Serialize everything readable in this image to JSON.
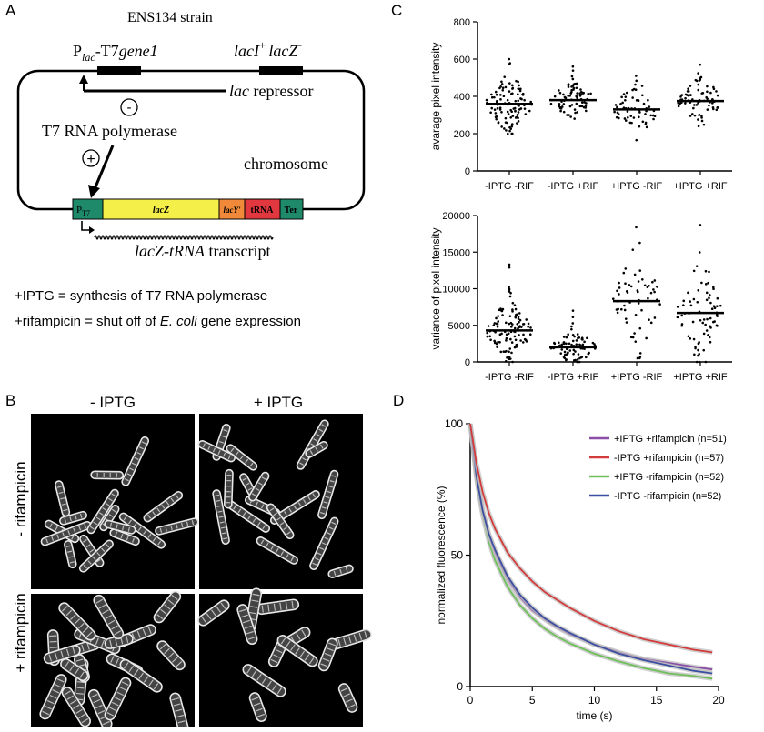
{
  "panels": {
    "a": {
      "letter": "A",
      "title": "ENS134 strain",
      "promoter_p": "P",
      "promoter_sub": "lac",
      "promoter_rest": "-T7",
      "promoter_gene": "gene1",
      "laci": "lacI",
      "laci_sup": "+",
      "lacz": "lacZ",
      "lacz_sup": "-",
      "minus_sign": "-",
      "plus_sign": "+",
      "repressor_italic": "lac",
      "repressor_rest": " repressor",
      "polymerase": "T7 RNA polymerase",
      "chromosome": "chromosome",
      "box_pt7_p": "P",
      "box_pt7_sub": "T7",
      "box_lacz": "lacZ",
      "box_lacy": "lacY'",
      "box_trna": "tRNA",
      "box_ter": "Ter",
      "transcript_italic": "lacZ-tRNA",
      "transcript_rest": " transcript",
      "legend_line1": "+IPTG = synthesis of T7 RNA polymerase",
      "legend_line2_pre": "+rifampicin = shut off of ",
      "legend_line2_italic": "E. coli",
      "legend_line2_post": " gene expression",
      "colors": {
        "pt7": "#1f8a6a",
        "lacz": "#f5ef4a",
        "lacy": "#f08a3a",
        "trna": "#e0383e",
        "ter": "#1f8a6a"
      }
    },
    "b": {
      "letter": "B",
      "col_labels": [
        "- IPTG",
        "+ IPTG"
      ],
      "row_labels": [
        "- rifampicin",
        "+ rifampicin"
      ]
    },
    "c": {
      "letter": "C"
    },
    "d": {
      "letter": "D"
    }
  },
  "chart_data": [
    {
      "type": "scatter",
      "id": "c-top",
      "ylabel": "avarage pixel intensity",
      "xlabel": "",
      "ylim": [
        0,
        800
      ],
      "yticks": [
        "0",
        "200",
        "400",
        "600",
        "800"
      ],
      "categories": [
        "-IPTG -RIF",
        "-IPTG +RIF",
        "+IPTG -RIF",
        "+IPTG +RIF"
      ],
      "means": [
        360,
        380,
        330,
        375
      ],
      "ranges": [
        [
          200,
          600
        ],
        [
          280,
          560
        ],
        [
          165,
          510
        ],
        [
          240,
          570
        ]
      ],
      "counts": [
        110,
        80,
        60,
        75
      ],
      "spread": [
        85,
        60,
        75,
        70
      ]
    },
    {
      "type": "scatter",
      "id": "c-bottom",
      "ylabel": "variance of pixel intensity",
      "xlabel": "",
      "ylim": [
        0,
        20000
      ],
      "yticks": [
        "0",
        "5000",
        "10000",
        "15000",
        "20000"
      ],
      "categories": [
        "-IPTG -RIF",
        "-IPTG +RIF",
        "+IPTG -RIF",
        "+IPTG +RIF"
      ],
      "means": [
        4300,
        2000,
        8300,
        6700
      ],
      "ranges": [
        [
          0,
          13300
        ],
        [
          0,
          7000
        ],
        [
          500,
          18400
        ],
        [
          0,
          18700
        ]
      ],
      "counts": [
        110,
        80,
        60,
        75
      ],
      "spread": [
        2200,
        1300,
        4200,
        4000
      ]
    },
    {
      "type": "line",
      "id": "d",
      "xlabel": "time (s)",
      "ylabel": "normalized fluorescence (%)",
      "xlim": [
        0,
        20
      ],
      "ylim": [
        0,
        100
      ],
      "xticks": [
        "0",
        "5",
        "10",
        "15",
        "20"
      ],
      "yticks": [
        "0",
        "50",
        "100"
      ],
      "legend_position": "top-right",
      "series": [
        {
          "name": "+IPTG +rifampicin (n=51)",
          "color": "#8b4fa8",
          "x": [
            0,
            0.5,
            1,
            1.5,
            2,
            3,
            4,
            5,
            6,
            7,
            8,
            10,
            12,
            14,
            16,
            18,
            19.5
          ],
          "values": [
            100,
            80,
            67,
            58,
            51,
            41,
            34,
            29,
            25.5,
            22.5,
            20,
            16,
            13,
            10.5,
            9,
            7.5,
            6.5
          ]
        },
        {
          "name": "-IPTG +rifampicin (n=57)",
          "color": "#d33a3a",
          "x": [
            0,
            0.5,
            1,
            1.5,
            2,
            3,
            4,
            5,
            6,
            7,
            8,
            10,
            12,
            14,
            16,
            18,
            19.5
          ],
          "values": [
            100,
            85,
            74,
            66,
            60,
            51,
            45,
            40,
            36,
            33,
            30,
            25,
            21,
            18,
            16,
            14,
            13
          ]
        },
        {
          "name": "+IPTG -rifampicin (n=52)",
          "color": "#6fbf5a",
          "x": [
            0,
            0.5,
            1,
            1.5,
            2,
            3,
            4,
            5,
            6,
            7,
            8,
            10,
            12,
            14,
            16,
            18,
            19.5
          ],
          "values": [
            100,
            79,
            65,
            55,
            48,
            38,
            31,
            26,
            22,
            19,
            16.5,
            12.5,
            9.5,
            7,
            5,
            4,
            3
          ]
        },
        {
          "name": "-IPTG -rifampicin (n=52)",
          "color": "#3d4fa0",
          "x": [
            0,
            0.5,
            1,
            1.5,
            2,
            3,
            4,
            5,
            6,
            7,
            8,
            10,
            12,
            14,
            16,
            18,
            19.5
          ],
          "values": [
            100,
            80,
            67,
            58,
            52,
            42,
            35,
            30,
            26,
            23,
            20.5,
            16,
            12.5,
            10,
            8,
            6,
            5
          ]
        }
      ]
    }
  ]
}
